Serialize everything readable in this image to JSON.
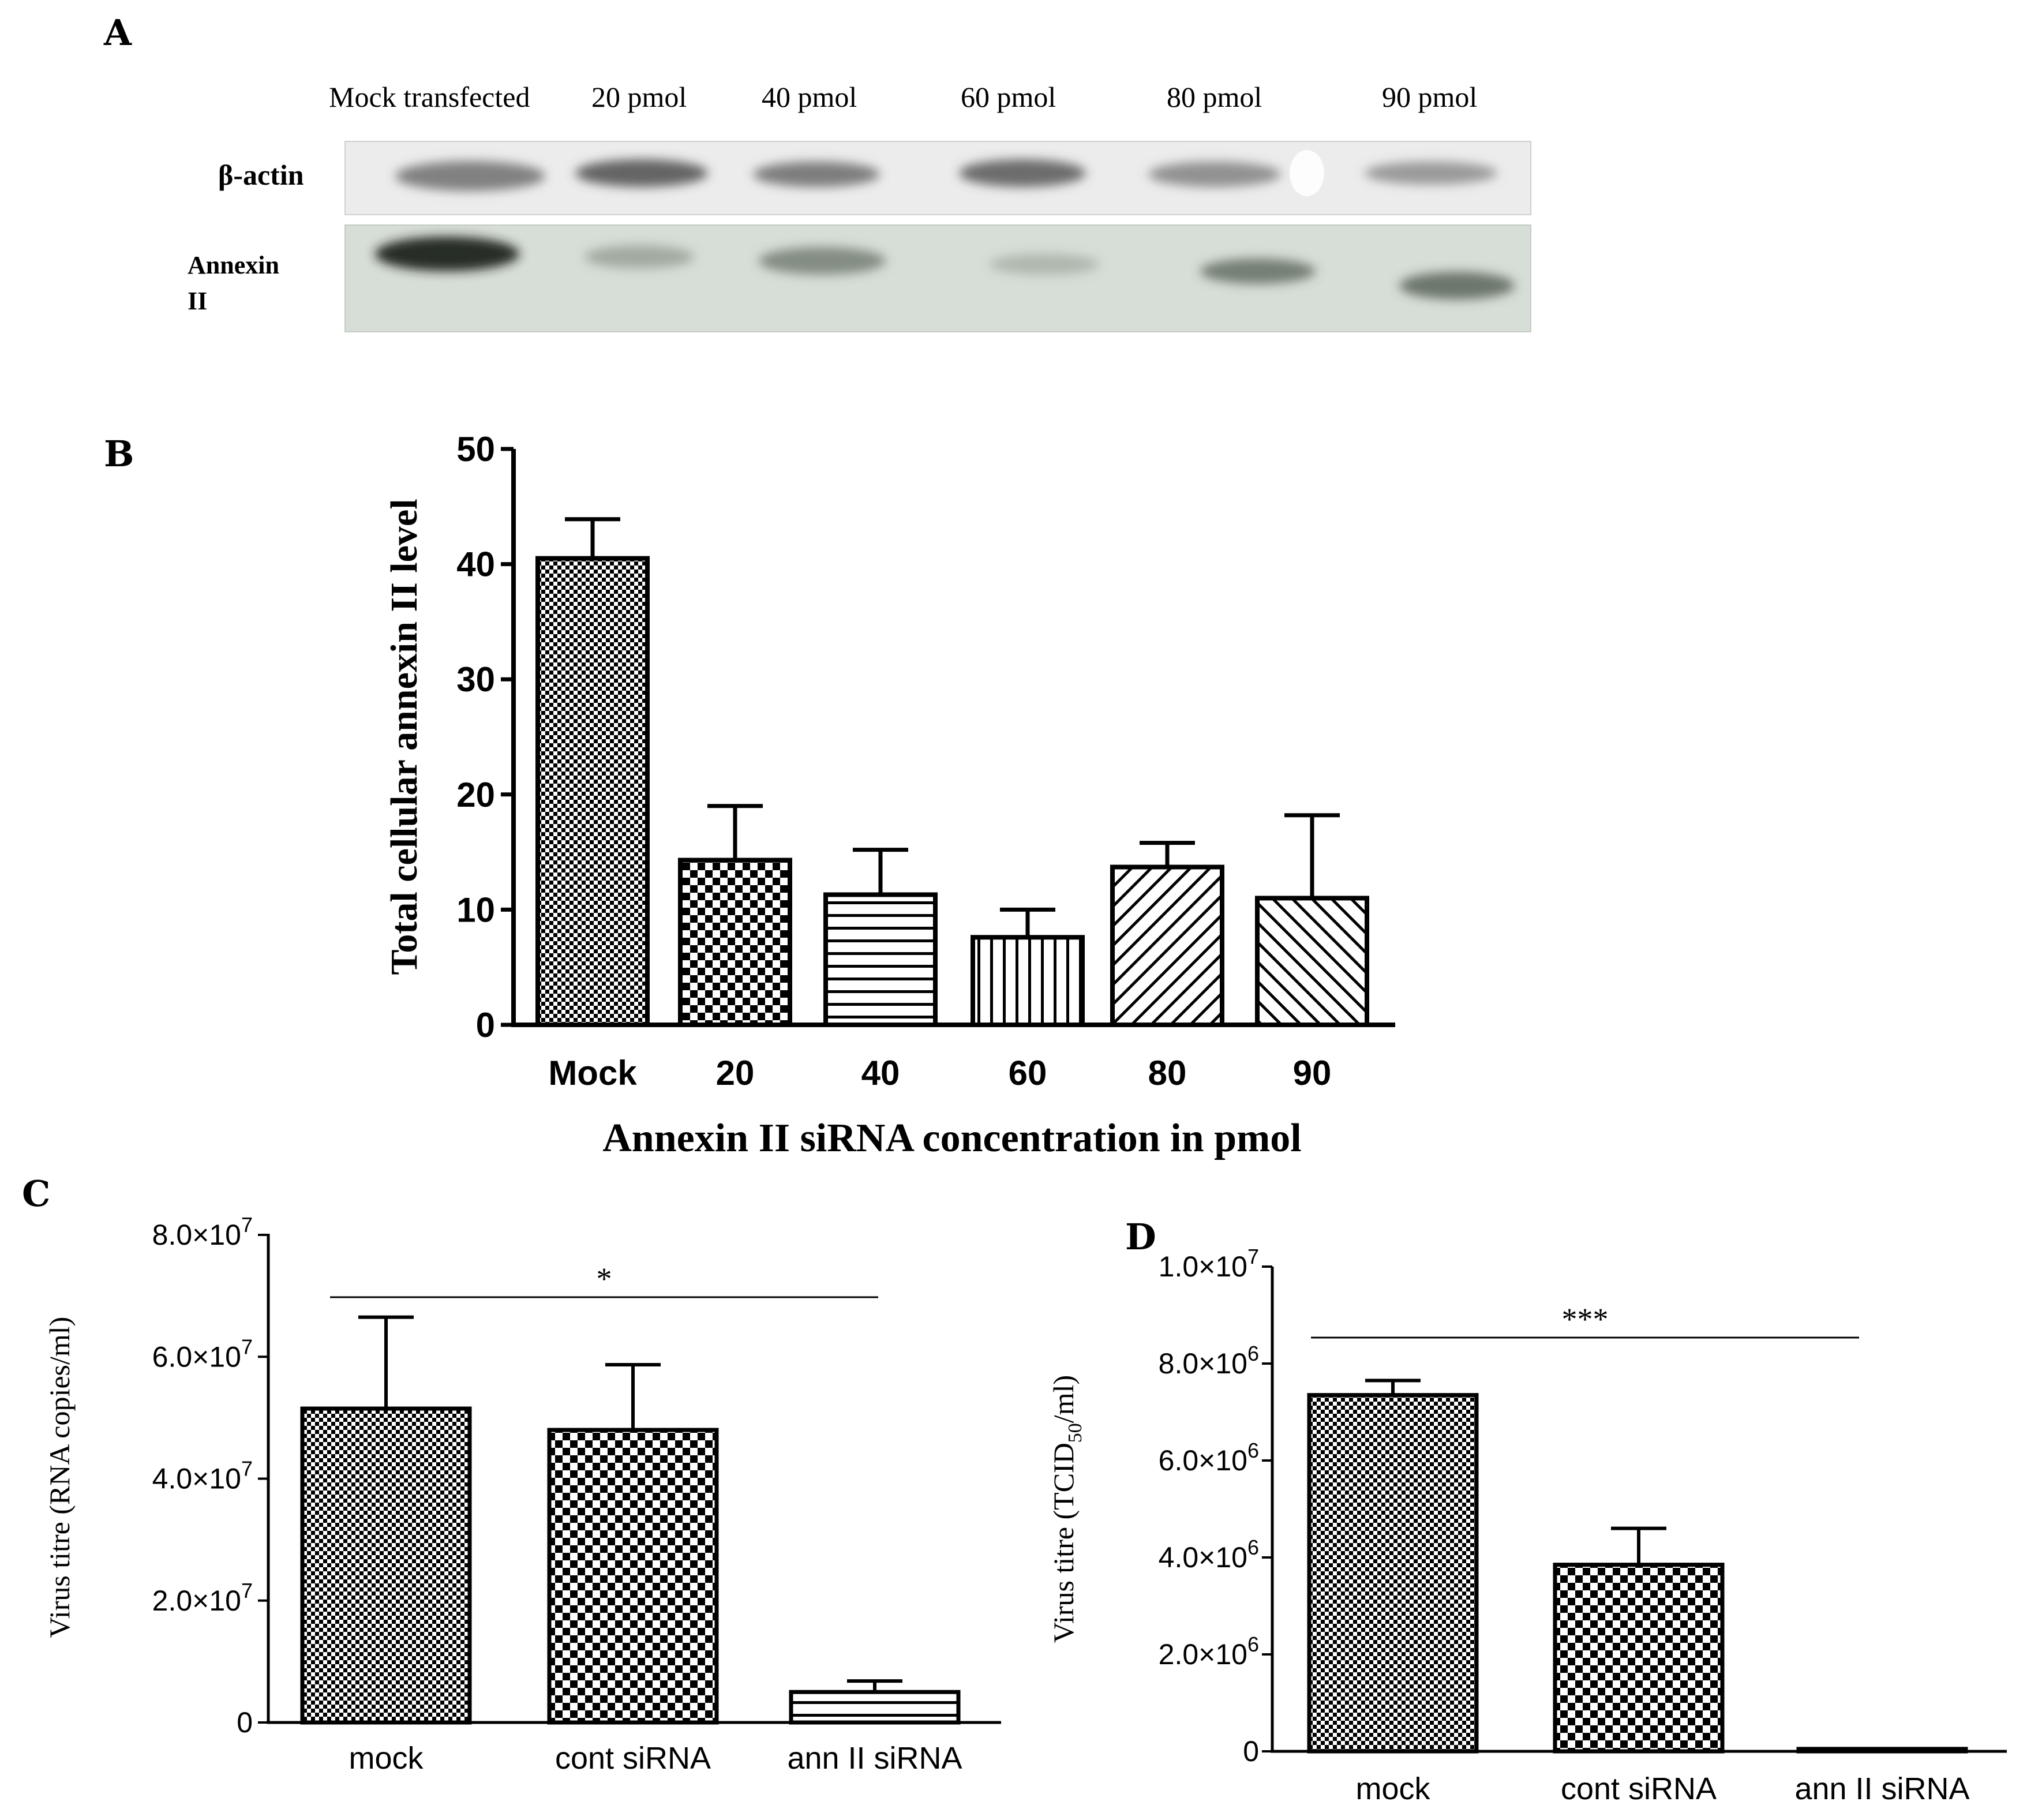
{
  "panels": {
    "a": {
      "letter": "A"
    },
    "b": {
      "letter": "B"
    },
    "c": {
      "letter": "C"
    },
    "d": {
      "letter": "D"
    }
  },
  "blot": {
    "lane_labels": [
      "Mock transfected",
      "20 pmol",
      "40 pmol",
      "60 pmol",
      "80 pmol",
      "90 pmol"
    ],
    "row_labels": {
      "actin": "β-actin",
      "annexin_line1": "Annexin",
      "annexin_line2": "II"
    },
    "colors": {
      "actin_bg": "#ececec",
      "annexin_bg": "#d7ddd7",
      "band": "#3a3f3a"
    }
  },
  "chart_data": [
    {
      "id": "B",
      "type": "bar",
      "categories": [
        "Mock",
        "20",
        "40",
        "60",
        "80",
        "90"
      ],
      "values": [
        40.5,
        14.3,
        11.3,
        7.6,
        13.7,
        11.0
      ],
      "errors": [
        3.4,
        4.7,
        3.9,
        2.4,
        2.1,
        7.2
      ],
      "patterns": [
        "fine-check",
        "check",
        "hlines",
        "vlines",
        "diag-up",
        "diag-down"
      ],
      "title": "",
      "xlabel": "Annexin II siRNA concentration in pmol",
      "ylabel": "Total cellular annexin II level",
      "ylim": [
        0,
        50
      ],
      "yticks": [
        0,
        10,
        20,
        30,
        40,
        50
      ],
      "ytick_labels": [
        "0",
        "10",
        "20",
        "30",
        "40",
        "50"
      ],
      "grid": false
    },
    {
      "id": "C",
      "type": "bar",
      "categories": [
        "mock",
        "cont siRNA",
        "ann II siRNA"
      ],
      "values": [
        51500000,
        48000000,
        5000000
      ],
      "errors": [
        15000000,
        10700000,
        1800000
      ],
      "patterns": [
        "fine-check",
        "check",
        "hlines"
      ],
      "title": "",
      "xlabel": "",
      "ylabel": "Virus titre (RNA copies/ml)",
      "ylim": [
        0,
        80000000
      ],
      "yticks": [
        0,
        20000000,
        40000000,
        60000000,
        80000000
      ],
      "ytick_labels": [
        {
          "mant": "0",
          "exp": ""
        },
        {
          "mant": "2.0×10",
          "exp": "7"
        },
        {
          "mant": "4.0×10",
          "exp": "7"
        },
        {
          "mant": "6.0×10",
          "exp": "7"
        },
        {
          "mant": "8.0×10",
          "exp": "7"
        }
      ],
      "significance": {
        "label": "*",
        "from": 0,
        "to": 2
      },
      "grid": false
    },
    {
      "id": "D",
      "type": "bar",
      "categories": [
        "mock",
        "cont siRNA",
        "ann II siRNA"
      ],
      "values": [
        7350000,
        3850000,
        50000
      ],
      "errors": [
        300000,
        750000,
        0
      ],
      "patterns": [
        "fine-check",
        "check",
        "none"
      ],
      "title": "",
      "xlabel": "",
      "ylabel": "Virus titre (TCID",
      "ylabel_sub": "50",
      "ylabel_end": "/ml)",
      "ylim": [
        0,
        10000000
      ],
      "yticks": [
        0,
        2000000,
        4000000,
        6000000,
        8000000,
        10000000
      ],
      "ytick_labels": [
        {
          "mant": "0",
          "exp": ""
        },
        {
          "mant": "2.0×10",
          "exp": "6"
        },
        {
          "mant": "4.0×10",
          "exp": "6"
        },
        {
          "mant": "6.0×10",
          "exp": "6"
        },
        {
          "mant": "8.0×10",
          "exp": "6"
        },
        {
          "mant": "1.0×10",
          "exp": "7"
        }
      ],
      "significance": {
        "label": "***",
        "from": 0,
        "to": 2
      },
      "grid": false
    }
  ]
}
